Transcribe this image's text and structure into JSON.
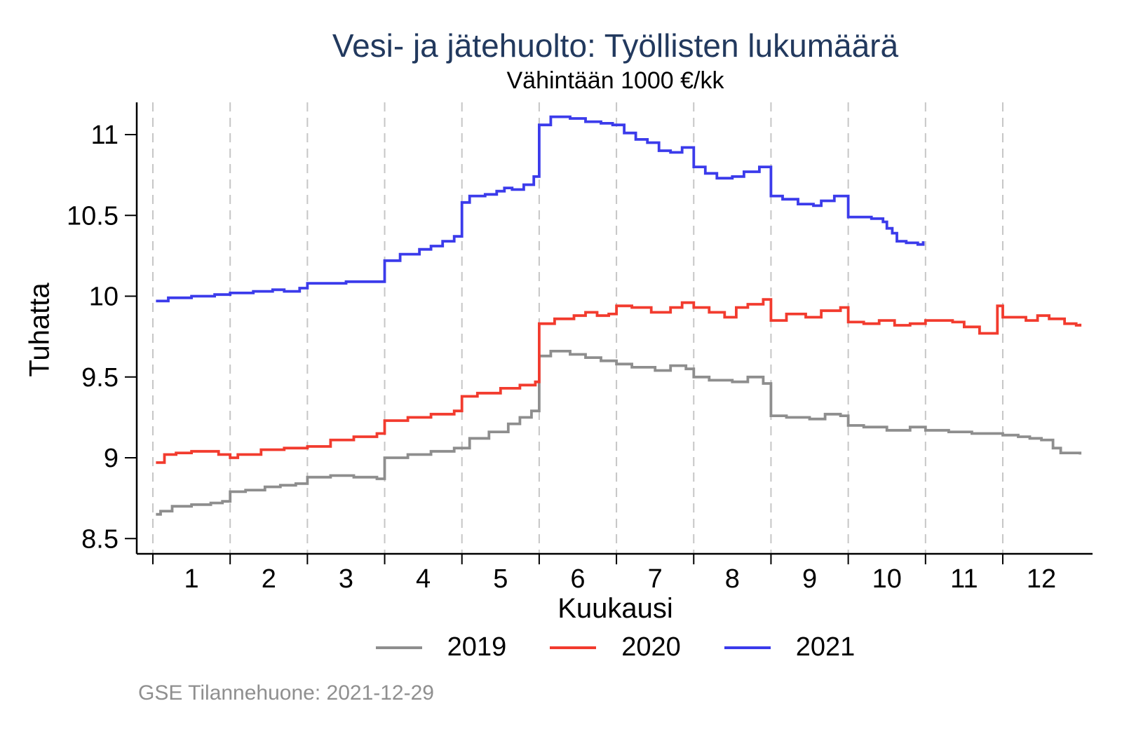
{
  "chart_data": {
    "type": "line",
    "step": true,
    "title": "Vesi- ja jätehuolto: Työllisten lukumäärä",
    "subtitle": "Vähintään 1000 €/kk",
    "xlabel": "Kuukausi",
    "ylabel": "Tuhatta",
    "caption": "GSE Tilannehuone: 2021-12-29",
    "title_color": "#22395e",
    "axis_color": "#000000",
    "grid_color": "#c6c6c6",
    "grid": "vertical-dashed",
    "legend_position": "bottom",
    "x_unit": "month_offset_from_january",
    "xlim": [
      0,
      12
    ],
    "ylim": [
      8.4,
      11.2
    ],
    "x_ticks": [
      "1",
      "2",
      "3",
      "4",
      "5",
      "6",
      "7",
      "8",
      "9",
      "10",
      "11",
      "12"
    ],
    "y_ticks": [
      "8.5",
      "9",
      "9.5",
      "10",
      "10.5",
      "11"
    ],
    "series": [
      {
        "name": "2019",
        "color": "#8e8e8e",
        "points": [
          [
            0.04,
            8.65
          ],
          [
            0.1,
            8.67
          ],
          [
            0.25,
            8.7
          ],
          [
            0.5,
            8.71
          ],
          [
            0.75,
            8.72
          ],
          [
            0.9,
            8.73
          ],
          [
            1.0,
            8.79
          ],
          [
            1.2,
            8.8
          ],
          [
            1.45,
            8.82
          ],
          [
            1.65,
            8.83
          ],
          [
            1.85,
            8.84
          ],
          [
            2.0,
            8.88
          ],
          [
            2.3,
            8.89
          ],
          [
            2.6,
            8.88
          ],
          [
            2.9,
            8.87
          ],
          [
            3.0,
            9.0
          ],
          [
            3.3,
            9.02
          ],
          [
            3.6,
            9.04
          ],
          [
            3.9,
            9.06
          ],
          [
            4.1,
            9.12
          ],
          [
            4.35,
            9.16
          ],
          [
            4.6,
            9.21
          ],
          [
            4.75,
            9.25
          ],
          [
            4.9,
            9.29
          ],
          [
            5.0,
            9.63
          ],
          [
            5.15,
            9.66
          ],
          [
            5.4,
            9.64
          ],
          [
            5.6,
            9.62
          ],
          [
            5.8,
            9.6
          ],
          [
            6.0,
            9.58
          ],
          [
            6.2,
            9.56
          ],
          [
            6.5,
            9.54
          ],
          [
            6.7,
            9.57
          ],
          [
            6.9,
            9.55
          ],
          [
            7.0,
            9.5
          ],
          [
            7.2,
            9.48
          ],
          [
            7.5,
            9.47
          ],
          [
            7.7,
            9.5
          ],
          [
            7.9,
            9.46
          ],
          [
            8.0,
            9.26
          ],
          [
            8.2,
            9.25
          ],
          [
            8.5,
            9.24
          ],
          [
            8.7,
            9.27
          ],
          [
            8.9,
            9.26
          ],
          [
            9.0,
            9.2
          ],
          [
            9.2,
            9.19
          ],
          [
            9.5,
            9.17
          ],
          [
            9.8,
            9.19
          ],
          [
            10.0,
            9.17
          ],
          [
            10.3,
            9.16
          ],
          [
            10.6,
            9.15
          ],
          [
            10.8,
            9.15
          ],
          [
            11.0,
            9.14
          ],
          [
            11.2,
            9.13
          ],
          [
            11.35,
            9.12
          ],
          [
            11.5,
            9.11
          ],
          [
            11.65,
            9.06
          ],
          [
            11.75,
            9.03
          ],
          [
            12.0,
            9.02
          ]
        ]
      },
      {
        "name": "2020",
        "color": "#f23b2e",
        "points": [
          [
            0.04,
            8.97
          ],
          [
            0.15,
            9.02
          ],
          [
            0.3,
            9.03
          ],
          [
            0.5,
            9.04
          ],
          [
            0.7,
            9.04
          ],
          [
            0.85,
            9.02
          ],
          [
            1.0,
            9.0
          ],
          [
            1.1,
            9.02
          ],
          [
            1.4,
            9.05
          ],
          [
            1.7,
            9.06
          ],
          [
            2.0,
            9.07
          ],
          [
            2.3,
            9.11
          ],
          [
            2.6,
            9.13
          ],
          [
            2.9,
            9.15
          ],
          [
            3.0,
            9.23
          ],
          [
            3.3,
            9.25
          ],
          [
            3.6,
            9.27
          ],
          [
            3.9,
            9.29
          ],
          [
            4.0,
            9.38
          ],
          [
            4.2,
            9.4
          ],
          [
            4.5,
            9.43
          ],
          [
            4.75,
            9.45
          ],
          [
            4.95,
            9.47
          ],
          [
            5.0,
            9.83
          ],
          [
            5.2,
            9.86
          ],
          [
            5.45,
            9.88
          ],
          [
            5.6,
            9.9
          ],
          [
            5.75,
            9.88
          ],
          [
            5.9,
            9.89
          ],
          [
            6.0,
            9.94
          ],
          [
            6.2,
            9.93
          ],
          [
            6.45,
            9.9
          ],
          [
            6.7,
            9.93
          ],
          [
            6.85,
            9.96
          ],
          [
            7.0,
            9.93
          ],
          [
            7.2,
            9.9
          ],
          [
            7.4,
            9.87
          ],
          [
            7.55,
            9.93
          ],
          [
            7.7,
            9.95
          ],
          [
            7.9,
            9.98
          ],
          [
            8.0,
            9.85
          ],
          [
            8.2,
            9.89
          ],
          [
            8.45,
            9.87
          ],
          [
            8.65,
            9.91
          ],
          [
            8.9,
            9.93
          ],
          [
            9.0,
            9.84
          ],
          [
            9.2,
            9.83
          ],
          [
            9.4,
            9.85
          ],
          [
            9.6,
            9.82
          ],
          [
            9.8,
            9.83
          ],
          [
            10.0,
            9.85
          ],
          [
            10.35,
            9.84
          ],
          [
            10.5,
            9.81
          ],
          [
            10.7,
            9.77
          ],
          [
            10.93,
            9.94
          ],
          [
            11.0,
            9.87
          ],
          [
            11.3,
            9.85
          ],
          [
            11.45,
            9.88
          ],
          [
            11.6,
            9.86
          ],
          [
            11.8,
            9.83
          ],
          [
            11.95,
            9.82
          ],
          [
            12.0,
            9.83
          ]
        ]
      },
      {
        "name": "2021",
        "color": "#3b3beb",
        "points": [
          [
            0.04,
            9.97
          ],
          [
            0.2,
            9.99
          ],
          [
            0.5,
            10.0
          ],
          [
            0.8,
            10.01
          ],
          [
            1.0,
            10.02
          ],
          [
            1.3,
            10.03
          ],
          [
            1.55,
            10.04
          ],
          [
            1.7,
            10.03
          ],
          [
            1.9,
            10.05
          ],
          [
            2.0,
            10.08
          ],
          [
            2.5,
            10.09
          ],
          [
            3.0,
            10.22
          ],
          [
            3.2,
            10.26
          ],
          [
            3.45,
            10.29
          ],
          [
            3.6,
            10.31
          ],
          [
            3.75,
            10.34
          ],
          [
            3.9,
            10.37
          ],
          [
            4.0,
            10.58
          ],
          [
            4.1,
            10.62
          ],
          [
            4.3,
            10.63
          ],
          [
            4.45,
            10.65
          ],
          [
            4.55,
            10.67
          ],
          [
            4.65,
            10.66
          ],
          [
            4.8,
            10.69
          ],
          [
            4.93,
            10.74
          ],
          [
            5.0,
            11.06
          ],
          [
            5.15,
            11.11
          ],
          [
            5.4,
            11.1
          ],
          [
            5.6,
            11.08
          ],
          [
            5.8,
            11.07
          ],
          [
            5.95,
            11.06
          ],
          [
            6.1,
            11.01
          ],
          [
            6.25,
            10.97
          ],
          [
            6.4,
            10.95
          ],
          [
            6.55,
            10.9
          ],
          [
            6.7,
            10.89
          ],
          [
            6.85,
            10.92
          ],
          [
            7.0,
            10.8
          ],
          [
            7.15,
            10.76
          ],
          [
            7.3,
            10.73
          ],
          [
            7.5,
            10.74
          ],
          [
            7.65,
            10.77
          ],
          [
            7.85,
            10.8
          ],
          [
            8.0,
            10.62
          ],
          [
            8.15,
            10.6
          ],
          [
            8.35,
            10.57
          ],
          [
            8.55,
            10.56
          ],
          [
            8.65,
            10.59
          ],
          [
            8.82,
            10.62
          ],
          [
            9.0,
            10.49
          ],
          [
            9.3,
            10.48
          ],
          [
            9.45,
            10.46
          ],
          [
            9.5,
            10.42
          ],
          [
            9.57,
            10.39
          ],
          [
            9.63,
            10.34
          ],
          [
            9.75,
            10.33
          ],
          [
            9.9,
            10.32
          ],
          [
            9.97,
            10.34
          ]
        ]
      }
    ]
  }
}
